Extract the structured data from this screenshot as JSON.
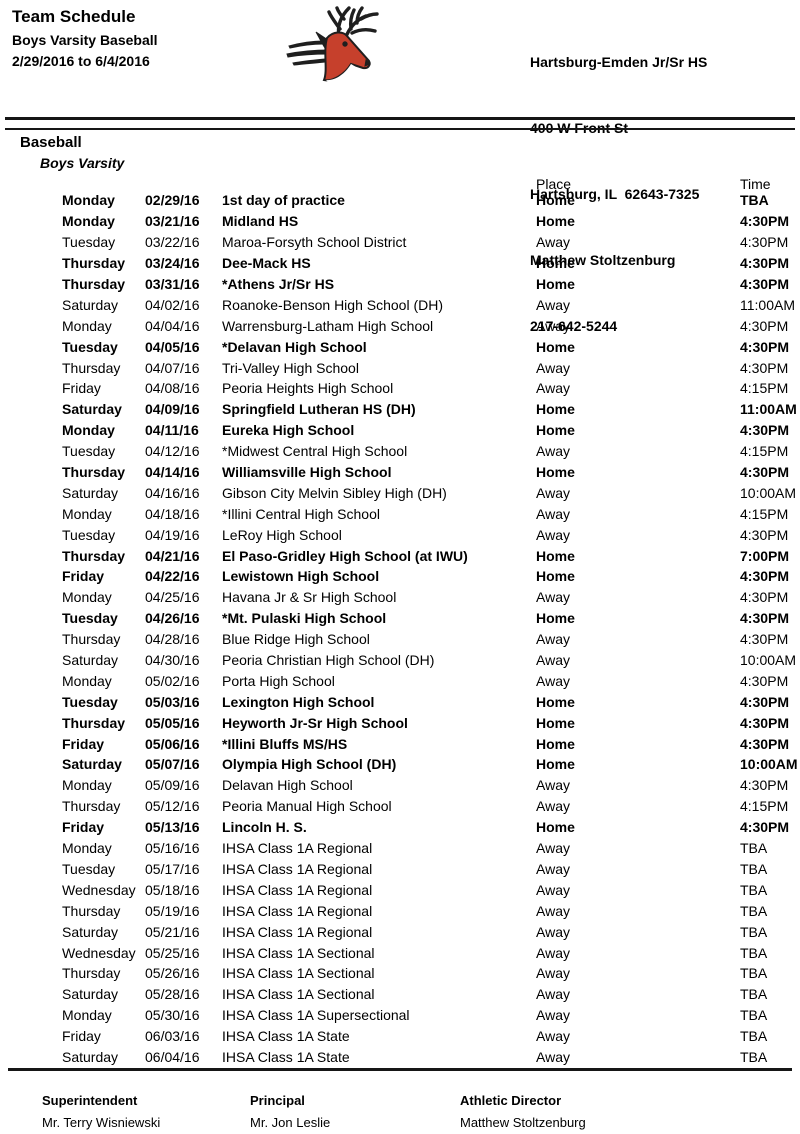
{
  "header": {
    "title": "Team Schedule",
    "subtitle": "Boys Varsity Baseball",
    "date_range": "2/29/2016 to 6/4/2016",
    "school": {
      "name": "Hartsburg-Emden Jr/Sr HS",
      "address": "400 W Front St",
      "city_state_zip": "Hartsburg, IL  62643-7325",
      "contact": "Matthew Stoltzenburg",
      "phone": "217-642-5244"
    }
  },
  "section": {
    "sport": "Baseball",
    "team": "Boys Varsity"
  },
  "schedule": {
    "headers": {
      "place": "Place",
      "time": "Time"
    },
    "rows": [
      {
        "day": "Monday",
        "date": "02/29/16",
        "opponent": "1st day of practice",
        "place": "Home",
        "time": "TBA"
      },
      {
        "day": "Monday",
        "date": "03/21/16",
        "opponent": "Midland HS",
        "place": "Home",
        "time": "4:30PM"
      },
      {
        "day": "Tuesday",
        "date": "03/22/16",
        "opponent": "Maroa-Forsyth School District",
        "place": "Away",
        "time": "4:30PM"
      },
      {
        "day": "Thursday",
        "date": "03/24/16",
        "opponent": "Dee-Mack HS",
        "place": "Home",
        "time": "4:30PM"
      },
      {
        "day": "Thursday",
        "date": "03/31/16",
        "opponent": "*Athens Jr/Sr HS",
        "place": "Home",
        "time": "4:30PM"
      },
      {
        "day": "Saturday",
        "date": "04/02/16",
        "opponent": "Roanoke-Benson High School (DH)",
        "place": "Away",
        "time": "11:00AM"
      },
      {
        "day": "Monday",
        "date": "04/04/16",
        "opponent": "Warrensburg-Latham High School",
        "place": "Away",
        "time": "4:30PM"
      },
      {
        "day": "Tuesday",
        "date": "04/05/16",
        "opponent": "*Delavan High School",
        "place": "Home",
        "time": "4:30PM"
      },
      {
        "day": "Thursday",
        "date": "04/07/16",
        "opponent": "Tri-Valley High School",
        "place": "Away",
        "time": "4:30PM"
      },
      {
        "day": "Friday",
        "date": "04/08/16",
        "opponent": "Peoria Heights High School",
        "place": "Away",
        "time": "4:15PM"
      },
      {
        "day": "Saturday",
        "date": "04/09/16",
        "opponent": "Springfield Lutheran HS (DH)",
        "place": "Home",
        "time": "11:00AM"
      },
      {
        "day": "Monday",
        "date": "04/11/16",
        "opponent": "Eureka High School",
        "place": "Home",
        "time": "4:30PM"
      },
      {
        "day": "Tuesday",
        "date": "04/12/16",
        "opponent": "*Midwest Central High School",
        "place": "Away",
        "time": "4:15PM"
      },
      {
        "day": "Thursday",
        "date": "04/14/16",
        "opponent": "Williamsville High School",
        "place": "Home",
        "time": "4:30PM"
      },
      {
        "day": "Saturday",
        "date": "04/16/16",
        "opponent": "Gibson City Melvin Sibley High (DH)",
        "place": "Away",
        "time": "10:00AM"
      },
      {
        "day": "Monday",
        "date": "04/18/16",
        "opponent": "*Illini Central High School",
        "place": "Away",
        "time": "4:15PM"
      },
      {
        "day": "Tuesday",
        "date": "04/19/16",
        "opponent": "LeRoy High School",
        "place": "Away",
        "time": "4:30PM"
      },
      {
        "day": "Thursday",
        "date": "04/21/16",
        "opponent": "El Paso-Gridley High School (at IWU)",
        "place": "Home",
        "time": "7:00PM"
      },
      {
        "day": "Friday",
        "date": "04/22/16",
        "opponent": "Lewistown High School",
        "place": "Home",
        "time": "4:30PM"
      },
      {
        "day": "Monday",
        "date": "04/25/16",
        "opponent": "Havana Jr & Sr High School",
        "place": "Away",
        "time": "4:30PM"
      },
      {
        "day": "Tuesday",
        "date": "04/26/16",
        "opponent": "*Mt. Pulaski High School",
        "place": "Home",
        "time": "4:30PM"
      },
      {
        "day": "Thursday",
        "date": "04/28/16",
        "opponent": "Blue Ridge High School",
        "place": "Away",
        "time": "4:30PM"
      },
      {
        "day": "Saturday",
        "date": "04/30/16",
        "opponent": "Peoria Christian High School (DH)",
        "place": "Away",
        "time": "10:00AM"
      },
      {
        "day": "Monday",
        "date": "05/02/16",
        "opponent": "Porta High School",
        "place": "Away",
        "time": "4:30PM"
      },
      {
        "day": "Tuesday",
        "date": "05/03/16",
        "opponent": "Lexington High School",
        "place": "Home",
        "time": "4:30PM"
      },
      {
        "day": "Thursday",
        "date": "05/05/16",
        "opponent": "Heyworth Jr-Sr High School",
        "place": "Home",
        "time": "4:30PM"
      },
      {
        "day": "Friday",
        "date": "05/06/16",
        "opponent": "*Illini Bluffs MS/HS",
        "place": "Home",
        "time": "4:30PM"
      },
      {
        "day": "Saturday",
        "date": "05/07/16",
        "opponent": "Olympia High School (DH)",
        "place": "Home",
        "time": "10:00AM"
      },
      {
        "day": "Monday",
        "date": "05/09/16",
        "opponent": "Delavan High School",
        "place": "Away",
        "time": "4:30PM"
      },
      {
        "day": "Thursday",
        "date": "05/12/16",
        "opponent": "Peoria Manual High School",
        "place": "Away",
        "time": "4:15PM"
      },
      {
        "day": "Friday",
        "date": "05/13/16",
        "opponent": "Lincoln H. S.",
        "place": "Home",
        "time": "4:30PM"
      },
      {
        "day": "Monday",
        "date": "05/16/16",
        "opponent": "IHSA Class 1A Regional",
        "place": "Away",
        "time": "TBA"
      },
      {
        "day": "Tuesday",
        "date": "05/17/16",
        "opponent": "IHSA Class 1A Regional",
        "place": "Away",
        "time": "TBA"
      },
      {
        "day": "Wednesday",
        "date": "05/18/16",
        "opponent": "IHSA Class 1A Regional",
        "place": "Away",
        "time": "TBA"
      },
      {
        "day": "Thursday",
        "date": "05/19/16",
        "opponent": "IHSA Class 1A Regional",
        "place": "Away",
        "time": "TBA"
      },
      {
        "day": "Saturday",
        "date": "05/21/16",
        "opponent": "IHSA Class 1A Regional",
        "place": "Away",
        "time": "TBA"
      },
      {
        "day": "Wednesday",
        "date": "05/25/16",
        "opponent": "IHSA Class 1A Sectional",
        "place": "Away",
        "time": "TBA"
      },
      {
        "day": "Thursday",
        "date": "05/26/16",
        "opponent": "IHSA Class 1A Sectional",
        "place": "Away",
        "time": "TBA"
      },
      {
        "day": "Saturday",
        "date": "05/28/16",
        "opponent": "IHSA Class 1A Sectional",
        "place": "Away",
        "time": "TBA"
      },
      {
        "day": "Monday",
        "date": "05/30/16",
        "opponent": "IHSA Class 1A Supersectional",
        "place": "Away",
        "time": "TBA"
      },
      {
        "day": "Friday",
        "date": "06/03/16",
        "opponent": "IHSA Class 1A State",
        "place": "Away",
        "time": "TBA"
      },
      {
        "day": "Saturday",
        "date": "06/04/16",
        "opponent": "IHSA Class 1A State",
        "place": "Away",
        "time": "TBA"
      }
    ]
  },
  "footer": {
    "columns": [
      {
        "label": "Superintendent",
        "value": "Mr. Terry Wisniewski"
      },
      {
        "label": "Principal",
        "value": "Mr. Jon Leslie"
      },
      {
        "label": "Athletic Director",
        "value": "Matthew Stoltzenburg"
      }
    ]
  },
  "colors": {
    "text": "#000000",
    "mascot_red": "#c6402c",
    "mascot_dark": "#1f1f1f"
  }
}
